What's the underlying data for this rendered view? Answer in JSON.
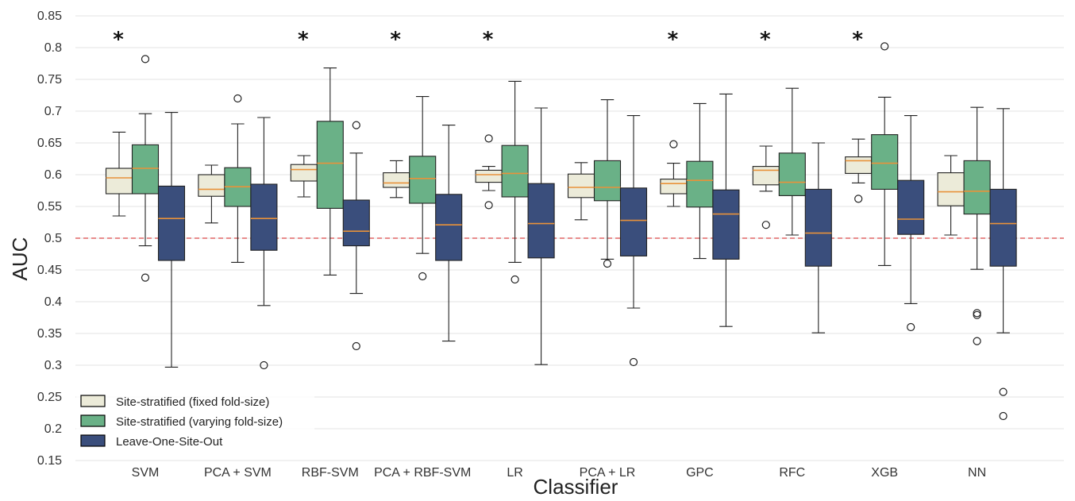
{
  "chart_data": {
    "type": "box",
    "xlabel": "Classifier",
    "ylabel": "AUC",
    "ylim": [
      0.15,
      0.85
    ],
    "yticks": [
      "0.15",
      "0.2",
      "0.25",
      "0.3",
      "0.35",
      "0.4",
      "0.45",
      "0.5",
      "0.55",
      "0.6",
      "0.65",
      "0.7",
      "0.75",
      "0.8",
      "0.85"
    ],
    "grid": "horizontal",
    "reference_line": {
      "y": 0.5,
      "style": "dashed",
      "color": "#e06666"
    },
    "categories": [
      "SVM",
      "PCA + SVM",
      "RBF-SVM",
      "PCA + RBF-SVM",
      "LR",
      "PCA + LR",
      "GPC",
      "RFC",
      "XGB",
      "NN"
    ],
    "significance": [
      true,
      false,
      true,
      true,
      true,
      false,
      true,
      true,
      true,
      false
    ],
    "significance_marker": "*",
    "legend_position": "bottom-left",
    "series": [
      {
        "name": "Site-stratified (fixed fold-size)",
        "color": "#ecebd9",
        "boxes": [
          {
            "whislo": 0.535,
            "q1": 0.57,
            "med": 0.595,
            "q3": 0.61,
            "whishi": 0.667,
            "fliers": []
          },
          {
            "whislo": 0.524,
            "q1": 0.566,
            "med": 0.577,
            "q3": 0.6,
            "whishi": 0.615,
            "fliers": []
          },
          {
            "whislo": 0.565,
            "q1": 0.59,
            "med": 0.608,
            "q3": 0.616,
            "whishi": 0.63,
            "fliers": []
          },
          {
            "whislo": 0.564,
            "q1": 0.58,
            "med": 0.587,
            "q3": 0.603,
            "whishi": 0.622,
            "fliers": []
          },
          {
            "whislo": 0.575,
            "q1": 0.588,
            "med": 0.6,
            "q3": 0.607,
            "whishi": 0.613,
            "fliers": [
              0.657,
              0.552
            ]
          },
          {
            "whislo": 0.529,
            "q1": 0.564,
            "med": 0.58,
            "q3": 0.601,
            "whishi": 0.619,
            "fliers": []
          },
          {
            "whislo": 0.55,
            "q1": 0.57,
            "med": 0.586,
            "q3": 0.593,
            "whishi": 0.618,
            "fliers": [
              0.648
            ]
          },
          {
            "whislo": 0.574,
            "q1": 0.584,
            "med": 0.607,
            "q3": 0.613,
            "whishi": 0.645,
            "fliers": [
              0.521
            ]
          },
          {
            "whislo": 0.587,
            "q1": 0.602,
            "med": 0.622,
            "q3": 0.628,
            "whishi": 0.656,
            "fliers": [
              0.562
            ]
          },
          {
            "whislo": 0.505,
            "q1": 0.551,
            "med": 0.573,
            "q3": 0.603,
            "whishi": 0.63,
            "fliers": []
          }
        ]
      },
      {
        "name": "Site-stratified (varying fold-size)",
        "color": "#6ab187",
        "boxes": [
          {
            "whislo": 0.488,
            "q1": 0.57,
            "med": 0.61,
            "q3": 0.647,
            "whishi": 0.696,
            "fliers": [
              0.782,
              0.438
            ]
          },
          {
            "whislo": 0.462,
            "q1": 0.55,
            "med": 0.581,
            "q3": 0.611,
            "whishi": 0.68,
            "fliers": [
              0.72
            ]
          },
          {
            "whislo": 0.442,
            "q1": 0.547,
            "med": 0.618,
            "q3": 0.684,
            "whishi": 0.768,
            "fliers": []
          },
          {
            "whislo": 0.476,
            "q1": 0.555,
            "med": 0.594,
            "q3": 0.629,
            "whishi": 0.723,
            "fliers": [
              0.44
            ]
          },
          {
            "whislo": 0.462,
            "q1": 0.565,
            "med": 0.602,
            "q3": 0.646,
            "whishi": 0.747,
            "fliers": [
              0.435
            ]
          },
          {
            "whislo": 0.467,
            "q1": 0.559,
            "med": 0.58,
            "q3": 0.622,
            "whishi": 0.718,
            "fliers": [
              0.46
            ]
          },
          {
            "whislo": 0.468,
            "q1": 0.549,
            "med": 0.591,
            "q3": 0.621,
            "whishi": 0.712,
            "fliers": []
          },
          {
            "whislo": 0.505,
            "q1": 0.567,
            "med": 0.588,
            "q3": 0.634,
            "whishi": 0.736,
            "fliers": []
          },
          {
            "whislo": 0.457,
            "q1": 0.577,
            "med": 0.618,
            "q3": 0.663,
            "whishi": 0.722,
            "fliers": [
              0.802
            ]
          },
          {
            "whislo": 0.451,
            "q1": 0.538,
            "med": 0.574,
            "q3": 0.622,
            "whishi": 0.706,
            "fliers": [
              0.382,
              0.379,
              0.338
            ]
          }
        ]
      },
      {
        "name": "Leave-One-Site-Out",
        "color": "#3a4e7c",
        "boxes": [
          {
            "whislo": 0.297,
            "q1": 0.465,
            "med": 0.531,
            "q3": 0.582,
            "whishi": 0.698,
            "fliers": []
          },
          {
            "whislo": 0.394,
            "q1": 0.481,
            "med": 0.531,
            "q3": 0.585,
            "whishi": 0.69,
            "fliers": [
              0.3
            ]
          },
          {
            "whislo": 0.413,
            "q1": 0.488,
            "med": 0.511,
            "q3": 0.56,
            "whishi": 0.634,
            "fliers": [
              0.678,
              0.33
            ]
          },
          {
            "whislo": 0.338,
            "q1": 0.465,
            "med": 0.521,
            "q3": 0.569,
            "whishi": 0.678,
            "fliers": []
          },
          {
            "whislo": 0.301,
            "q1": 0.469,
            "med": 0.523,
            "q3": 0.586,
            "whishi": 0.705,
            "fliers": []
          },
          {
            "whislo": 0.39,
            "q1": 0.472,
            "med": 0.528,
            "q3": 0.579,
            "whishi": 0.693,
            "fliers": [
              0.305
            ]
          },
          {
            "whislo": 0.361,
            "q1": 0.467,
            "med": 0.538,
            "q3": 0.576,
            "whishi": 0.727,
            "fliers": []
          },
          {
            "whislo": 0.351,
            "q1": 0.456,
            "med": 0.508,
            "q3": 0.577,
            "whishi": 0.65,
            "fliers": []
          },
          {
            "whislo": 0.397,
            "q1": 0.506,
            "med": 0.53,
            "q3": 0.591,
            "whishi": 0.693,
            "fliers": [
              0.36
            ]
          },
          {
            "whislo": 0.351,
            "q1": 0.456,
            "med": 0.523,
            "q3": 0.577,
            "whishi": 0.704,
            "fliers": [
              0.258,
              0.22
            ]
          }
        ]
      }
    ],
    "median_color": "#e8923a"
  }
}
